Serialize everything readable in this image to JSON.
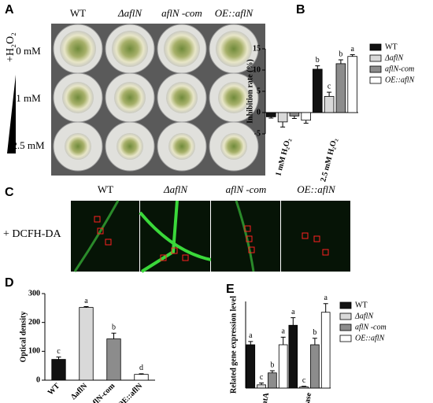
{
  "panel_a": {
    "letter": "A",
    "columns": [
      "WT",
      "ΔaflN",
      "aflN -com",
      "OE::aflN"
    ],
    "rows": [
      "0 mM",
      "1 mM",
      "2.5 mM"
    ],
    "treatment": "+H₂O₂"
  },
  "panel_c": {
    "letter": "C",
    "columns": [
      "WT",
      "ΔaflN",
      "aflN -com",
      "OE::aflN"
    ],
    "treatment": "+ DCFH-DA"
  },
  "chart_data": [
    {
      "type": "bar",
      "letter": "B",
      "y_label": "Inhibition rate (%)",
      "categories": [
        "1 mM H₂O₂",
        "2.5 mM H₂O₂"
      ],
      "ylim": [
        -5,
        15
      ],
      "yticks": [
        -5,
        0,
        5,
        10,
        15
      ],
      "legend": "right",
      "series": [
        {
          "name": "WT",
          "color": "#111111",
          "values": [
            -1,
            10.2
          ],
          "errors": [
            0.3,
            0.8
          ],
          "letters": [
            null,
            "b"
          ]
        },
        {
          "name": "ΔaflN",
          "color": "#d9d9d9",
          "values": [
            -2.2,
            3.8
          ],
          "errors": [
            1.2,
            1.0
          ],
          "letters": [
            null,
            "c"
          ]
        },
        {
          "name": "aflN-com",
          "color": "#8c8c8c",
          "values": [
            -0.8,
            11.5
          ],
          "errors": [
            0.6,
            0.9
          ],
          "letters": [
            null,
            "b"
          ]
        },
        {
          "name": "OE::aflN",
          "color": "#ffffff",
          "values": [
            -1.8,
            13.2
          ],
          "errors": [
            0.7,
            0.4
          ],
          "letters": [
            null,
            "a"
          ]
        }
      ]
    },
    {
      "type": "bar",
      "letter": "D",
      "y_label": "Optical density",
      "categories": [
        "WT",
        "ΔaflN",
        "aflN-com",
        "OE::aflN"
      ],
      "ylim": [
        0,
        300
      ],
      "yticks": [
        0,
        100,
        200,
        300
      ],
      "values": [
        72,
        252,
        143,
        20
      ],
      "errors": [
        8,
        3,
        20,
        2
      ],
      "letters": [
        "c",
        "a",
        "b",
        "d"
      ],
      "colors": [
        "#111111",
        "#d9d9d9",
        "#8c8c8c",
        "#ffffff"
      ]
    },
    {
      "type": "bar",
      "letter": "E",
      "y_label": "Related gene expression level",
      "categories": [
        "catA",
        "catalase"
      ],
      "ylim": [
        0,
        4
      ],
      "legend": "right",
      "series": [
        {
          "name": "WT",
          "color": "#111111",
          "values": [
            2.0,
            2.9
          ],
          "errors": [
            0.15,
            0.35
          ],
          "letters": [
            "a",
            "a"
          ]
        },
        {
          "name": "ΔaflN",
          "color": "#d9d9d9",
          "values": [
            0.15,
            0.05
          ],
          "errors": [
            0.08,
            0.03
          ],
          "letters": [
            "c",
            "c"
          ]
        },
        {
          "name": "aflN -com",
          "color": "#8c8c8c",
          "values": [
            0.7,
            2.0
          ],
          "errors": [
            0.1,
            0.3
          ],
          "letters": [
            "b",
            "b"
          ]
        },
        {
          "name": "OE::aflN",
          "color": "#ffffff",
          "values": [
            2.0,
            3.5
          ],
          "errors": [
            0.35,
            0.4
          ],
          "letters": [
            "a",
            "a"
          ]
        }
      ]
    }
  ]
}
